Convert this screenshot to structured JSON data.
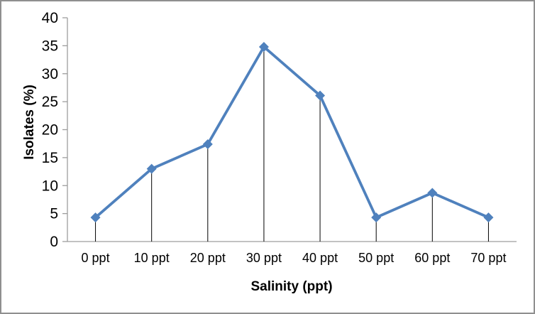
{
  "frame": {
    "border_color": "#8f8f8f",
    "background": "#ffffff"
  },
  "chart_data": {
    "type": "line",
    "title": "",
    "categories": [
      "0 ppt",
      "10 ppt",
      "20 ppt",
      "30 ppt",
      "40 ppt",
      "50 ppt",
      "60 ppt",
      "70 ppt"
    ],
    "values": [
      4.3,
      13.0,
      17.4,
      34.8,
      26.1,
      4.3,
      8.7,
      4.3
    ],
    "xlabel": "Salinity (ppt)",
    "ylabel": "Isolates (%)",
    "ylim": [
      0,
      40
    ],
    "ytick_step": 5,
    "yticks": [
      "0",
      "5",
      "10",
      "15",
      "20",
      "25",
      "30",
      "35",
      "40"
    ],
    "grid": false,
    "legend": "none",
    "marker": "diamond",
    "drop_lines": true,
    "colors": {
      "series_line": "#4f81bd",
      "marker_fill": "#4f81bd",
      "axis_line": "#9d9d9d",
      "drop_line": "#000000",
      "text": "#000000"
    }
  }
}
